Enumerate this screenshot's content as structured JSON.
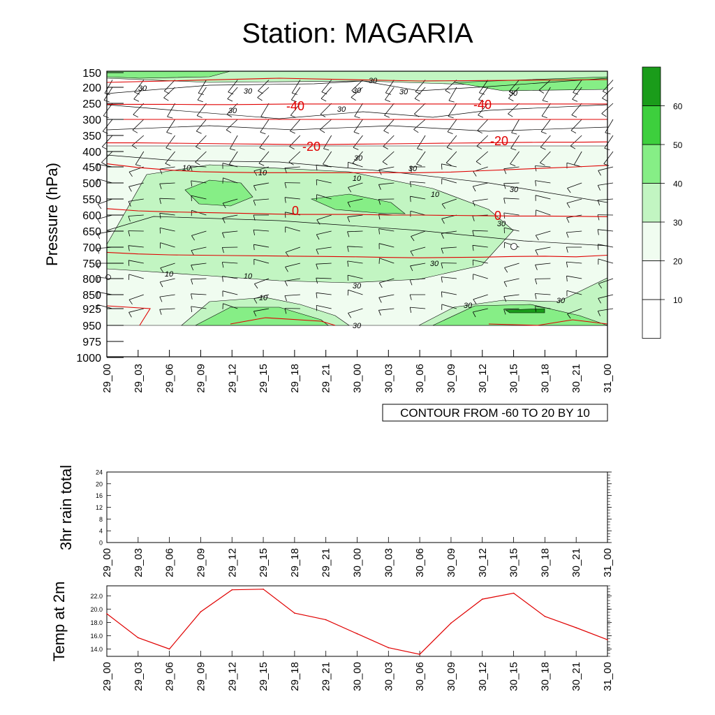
{
  "title": "Station: MAGARIA",
  "time_labels": [
    "29_00",
    "29_03",
    "29_06",
    "29_09",
    "29_12",
    "29_15",
    "29_18",
    "29_21",
    "30_00",
    "30_03",
    "30_06",
    "30_09",
    "30_12",
    "30_15",
    "30_18",
    "30_21",
    "31_00"
  ],
  "colors": {
    "green1": "#f0fcf0",
    "green2": "#c2f5c2",
    "green3": "#86ee86",
    "green4": "#3dcf3d",
    "green5": "#1a9c1a",
    "red": "#e00000"
  },
  "chart_data": [
    {
      "type": "heatmap",
      "name": "cross_section",
      "ylabel": "Pressure (hPa)",
      "xlabel": "",
      "y_ticks": [
        150,
        200,
        250,
        300,
        350,
        400,
        450,
        500,
        550,
        600,
        650,
        700,
        750,
        800,
        850,
        925,
        950,
        975,
        1000
      ],
      "x_ticks": [
        "29_00",
        "29_03",
        "29_06",
        "29_09",
        "29_12",
        "29_15",
        "29_18",
        "29_21",
        "30_00",
        "30_03",
        "30_06",
        "30_09",
        "30_12",
        "30_15",
        "30_18",
        "30_21",
        "31_00"
      ],
      "contour_note": "CONTOUR FROM -60 TO 20 BY 10",
      "colorbar": {
        "levels": [
          10,
          20,
          30,
          40,
          50,
          60
        ],
        "labels": [
          "10",
          "20",
          "30",
          "40",
          "50",
          "60"
        ]
      },
      "humidity_labels": [
        "30",
        "30",
        "30",
        "30",
        "30",
        "30",
        "10",
        "10",
        "10",
        "10",
        "10",
        "10",
        "10",
        "30",
        "30",
        "30",
        "30",
        "30",
        "30",
        "30",
        "30",
        "30",
        "30",
        "30"
      ],
      "temperature_labels": [
        "-40",
        "-40",
        "-20",
        "-20",
        "0",
        "0"
      ],
      "temperature_isotherms_pressure": [
        {
          "label": "-40",
          "levels": [
            253,
            253,
            253,
            254,
            254,
            253,
            252,
            252,
            252,
            252,
            252,
            252,
            252,
            252,
            252,
            252,
            252
          ]
        },
        {
          "label": "-30",
          "levels": [
            300,
            300,
            300,
            300,
            300,
            300,
            300,
            300,
            300,
            300,
            300,
            300,
            300,
            300,
            300,
            300,
            300
          ]
        },
        {
          "label": "-20",
          "levels": [
            373,
            373,
            374,
            375,
            376,
            377,
            378,
            378,
            377,
            376,
            375,
            374,
            373,
            372,
            371,
            371,
            370
          ]
        },
        {
          "label": "-10",
          "levels": [
            440,
            452,
            460,
            465,
            467,
            468,
            468,
            468,
            468,
            468,
            468,
            466,
            462,
            458,
            454,
            450,
            445
          ]
        },
        {
          "label": "0",
          "levels": [
            580,
            587,
            590,
            592,
            594,
            596,
            598,
            598,
            598,
            600,
            600,
            601,
            602,
            603,
            603,
            604,
            605
          ]
        },
        {
          "label": "10",
          "levels": [
            716,
            721,
            724,
            725,
            726,
            727,
            728,
            729,
            730,
            732,
            733,
            732,
            731,
            729,
            728,
            730,
            725
          ]
        }
      ]
    },
    {
      "type": "line",
      "name": "rain",
      "ylabel": "3hr rain total",
      "y_ticks": [
        "0",
        "4",
        "8",
        "12",
        "16",
        "20",
        "24"
      ],
      "ylim": [
        0,
        24
      ],
      "x": [
        "29_00",
        "29_03",
        "29_06",
        "29_09",
        "29_12",
        "29_15",
        "29_18",
        "29_21",
        "30_00",
        "30_03",
        "30_06",
        "30_09",
        "30_12",
        "30_15",
        "30_18",
        "30_21",
        "31_00"
      ],
      "values": [
        0,
        0,
        0,
        0,
        0,
        0,
        0,
        0,
        0,
        0,
        0,
        0,
        0,
        0,
        0,
        0,
        0
      ]
    },
    {
      "type": "line",
      "name": "temp2m",
      "ylabel": "Temp at 2m",
      "y_ticks": [
        "14.0",
        "16.0",
        "18.0",
        "20.0",
        "22.0"
      ],
      "ylim": [
        12.9,
        23.5
      ],
      "x": [
        "29_00",
        "29_03",
        "29_06",
        "29_09",
        "29_12",
        "29_15",
        "29_18",
        "29_21",
        "30_00",
        "30_03",
        "30_06",
        "30_09",
        "30_12",
        "30_15",
        "30_18",
        "30_21",
        "31_00"
      ],
      "values": [
        19.3,
        15.7,
        14.0,
        19.6,
        22.9,
        23.0,
        19.4,
        18.4,
        16.3,
        14.2,
        13.2,
        17.9,
        21.5,
        22.4,
        18.9,
        17.2,
        15.4
      ]
    }
  ]
}
